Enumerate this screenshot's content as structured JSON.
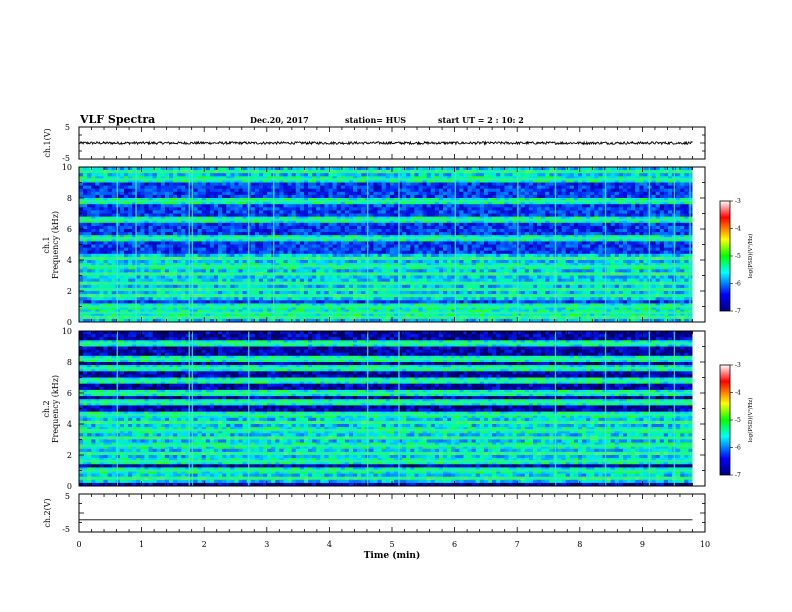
{
  "header": {
    "title": "VLF Spectra",
    "date": "Dec.20, 2017",
    "station": "station= HUS",
    "start": "start  UT =   2  : 10: 2"
  },
  "panels": {
    "ch1_wave_label": "ch.1(V)",
    "ch1_spec_label": "ch.1\nFrequency (kHz)",
    "ch2_spec_label": "ch.2\nFrequency (kHz)",
    "ch2_wave_label": "ch.2(V)"
  },
  "colorbar": {
    "label": "log(PSD)(V²/Hz)",
    "ticks": [
      "-3",
      "-4",
      "-5",
      "-6",
      "-7"
    ],
    "colors": [
      "#000080",
      "#0000ff",
      "#00ffff",
      "#00ff00",
      "#ffff00",
      "#ff0000",
      "#ffffff"
    ]
  },
  "chart_data": [
    {
      "type": "line",
      "name": "ch1-waveform",
      "ylabel": "ch.1(V)",
      "xlim": [
        0,
        10
      ],
      "ylim": [
        -5,
        5
      ],
      "yticks": [
        "5",
        "-5"
      ],
      "x": [
        0,
        1,
        2,
        3,
        4,
        5,
        6,
        7,
        8,
        9,
        9.8
      ],
      "y": [
        0,
        0,
        0,
        0,
        0,
        0,
        0,
        0,
        0,
        0,
        0
      ],
      "note_amplitude": 0.4
    },
    {
      "type": "heatmap",
      "name": "ch1-spectrogram",
      "ylabel": "ch.1 Frequency (kHz)",
      "xlim": [
        0,
        10
      ],
      "ylim": [
        0,
        10
      ],
      "yticks": [
        "0",
        "2",
        "4",
        "6",
        "8",
        "10"
      ],
      "data_end_min": 9.8,
      "background_level": -6,
      "bands_khz": [
        0.3,
        0.6,
        1.0,
        1.7,
        2.1,
        2.5,
        3.1,
        3.6,
        4.1,
        5.4,
        6.6,
        7.8,
        9.2,
        9.7
      ],
      "spikes_min": [
        0.6,
        0.9,
        1.75,
        1.8,
        2.7,
        3.1,
        4.6,
        5.1,
        6.0,
        7.0,
        7.6,
        8.4,
        9.1,
        9.5,
        9.75
      ]
    },
    {
      "type": "heatmap",
      "name": "ch2-spectrogram",
      "ylabel": "ch.2 Frequency (kHz)",
      "xlim": [
        0,
        10
      ],
      "ylim": [
        0,
        10
      ],
      "yticks": [
        "0",
        "2",
        "4",
        "6",
        "8",
        "10"
      ],
      "data_end_min": 9.8,
      "background_level": -6.5,
      "bands_khz": [
        0.5,
        1.0,
        1.6,
        2.1,
        2.6,
        3.1,
        3.6,
        4.1,
        4.6,
        5.4,
        6.0,
        6.8,
        7.6,
        8.2,
        9.2
      ],
      "spikes_min": [
        0.6,
        1.75,
        1.8,
        2.7,
        4.6,
        5.1,
        7.6,
        8.4,
        9.1,
        9.5
      ]
    },
    {
      "type": "line",
      "name": "ch2-waveform",
      "ylabel": "ch.2(V)",
      "xlim": [
        0,
        10
      ],
      "ylim": [
        -5,
        5
      ],
      "yticks": [
        "5",
        "-5"
      ],
      "x": [
        0,
        9.8
      ],
      "y": [
        -1.8,
        -1.8
      ],
      "xlabel": "Time (min)",
      "xticks": [
        "0",
        "1",
        "2",
        "3",
        "4",
        "5",
        "6",
        "7",
        "8",
        "9",
        "10"
      ]
    }
  ]
}
